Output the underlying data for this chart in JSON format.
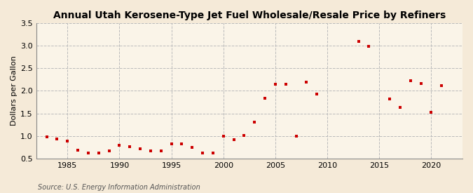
{
  "title": "Annual Utah Kerosene-Type Jet Fuel Wholesale/Resale Price by Refiners",
  "ylabel": "Dollars per Gallon",
  "source": "Source: U.S. Energy Information Administration",
  "background_color": "#f5ead8",
  "plot_bg_color": "#faf4e8",
  "marker_color": "#cc0000",
  "years": [
    1983,
    1984,
    1985,
    1986,
    1987,
    1988,
    1989,
    1990,
    1991,
    1992,
    1993,
    1994,
    1995,
    1996,
    1997,
    1998,
    1999,
    2000,
    2001,
    2002,
    2003,
    2004,
    2005,
    2006,
    2007,
    2008,
    2009,
    2013,
    2014,
    2016,
    2017,
    2018,
    2019,
    2020,
    2021
  ],
  "values": [
    0.98,
    0.93,
    0.88,
    0.68,
    0.63,
    0.62,
    0.67,
    0.8,
    0.76,
    0.72,
    0.67,
    0.67,
    0.83,
    0.82,
    0.75,
    0.63,
    0.63,
    1.0,
    0.92,
    1.01,
    1.3,
    1.83,
    2.14,
    2.15,
    1.0,
    2.2,
    1.93,
    3.1,
    2.99,
    1.82,
    1.64,
    2.22,
    2.16,
    1.52,
    2.12
  ],
  "xlim": [
    1982,
    2023
  ],
  "ylim": [
    0.5,
    3.5
  ],
  "yticks": [
    0.5,
    1.0,
    1.5,
    2.0,
    2.5,
    3.0,
    3.5
  ],
  "xticks": [
    1985,
    1990,
    1995,
    2000,
    2005,
    2010,
    2015,
    2020
  ],
  "vgrid_ticks": [
    1985,
    1990,
    1995,
    2000,
    2005,
    2010,
    2015,
    2020
  ],
  "hgrid_ticks": [
    0.5,
    1.0,
    1.5,
    2.0,
    2.5,
    3.0,
    3.5
  ],
  "title_fontsize": 10,
  "ylabel_fontsize": 8,
  "tick_fontsize": 8,
  "source_fontsize": 7
}
